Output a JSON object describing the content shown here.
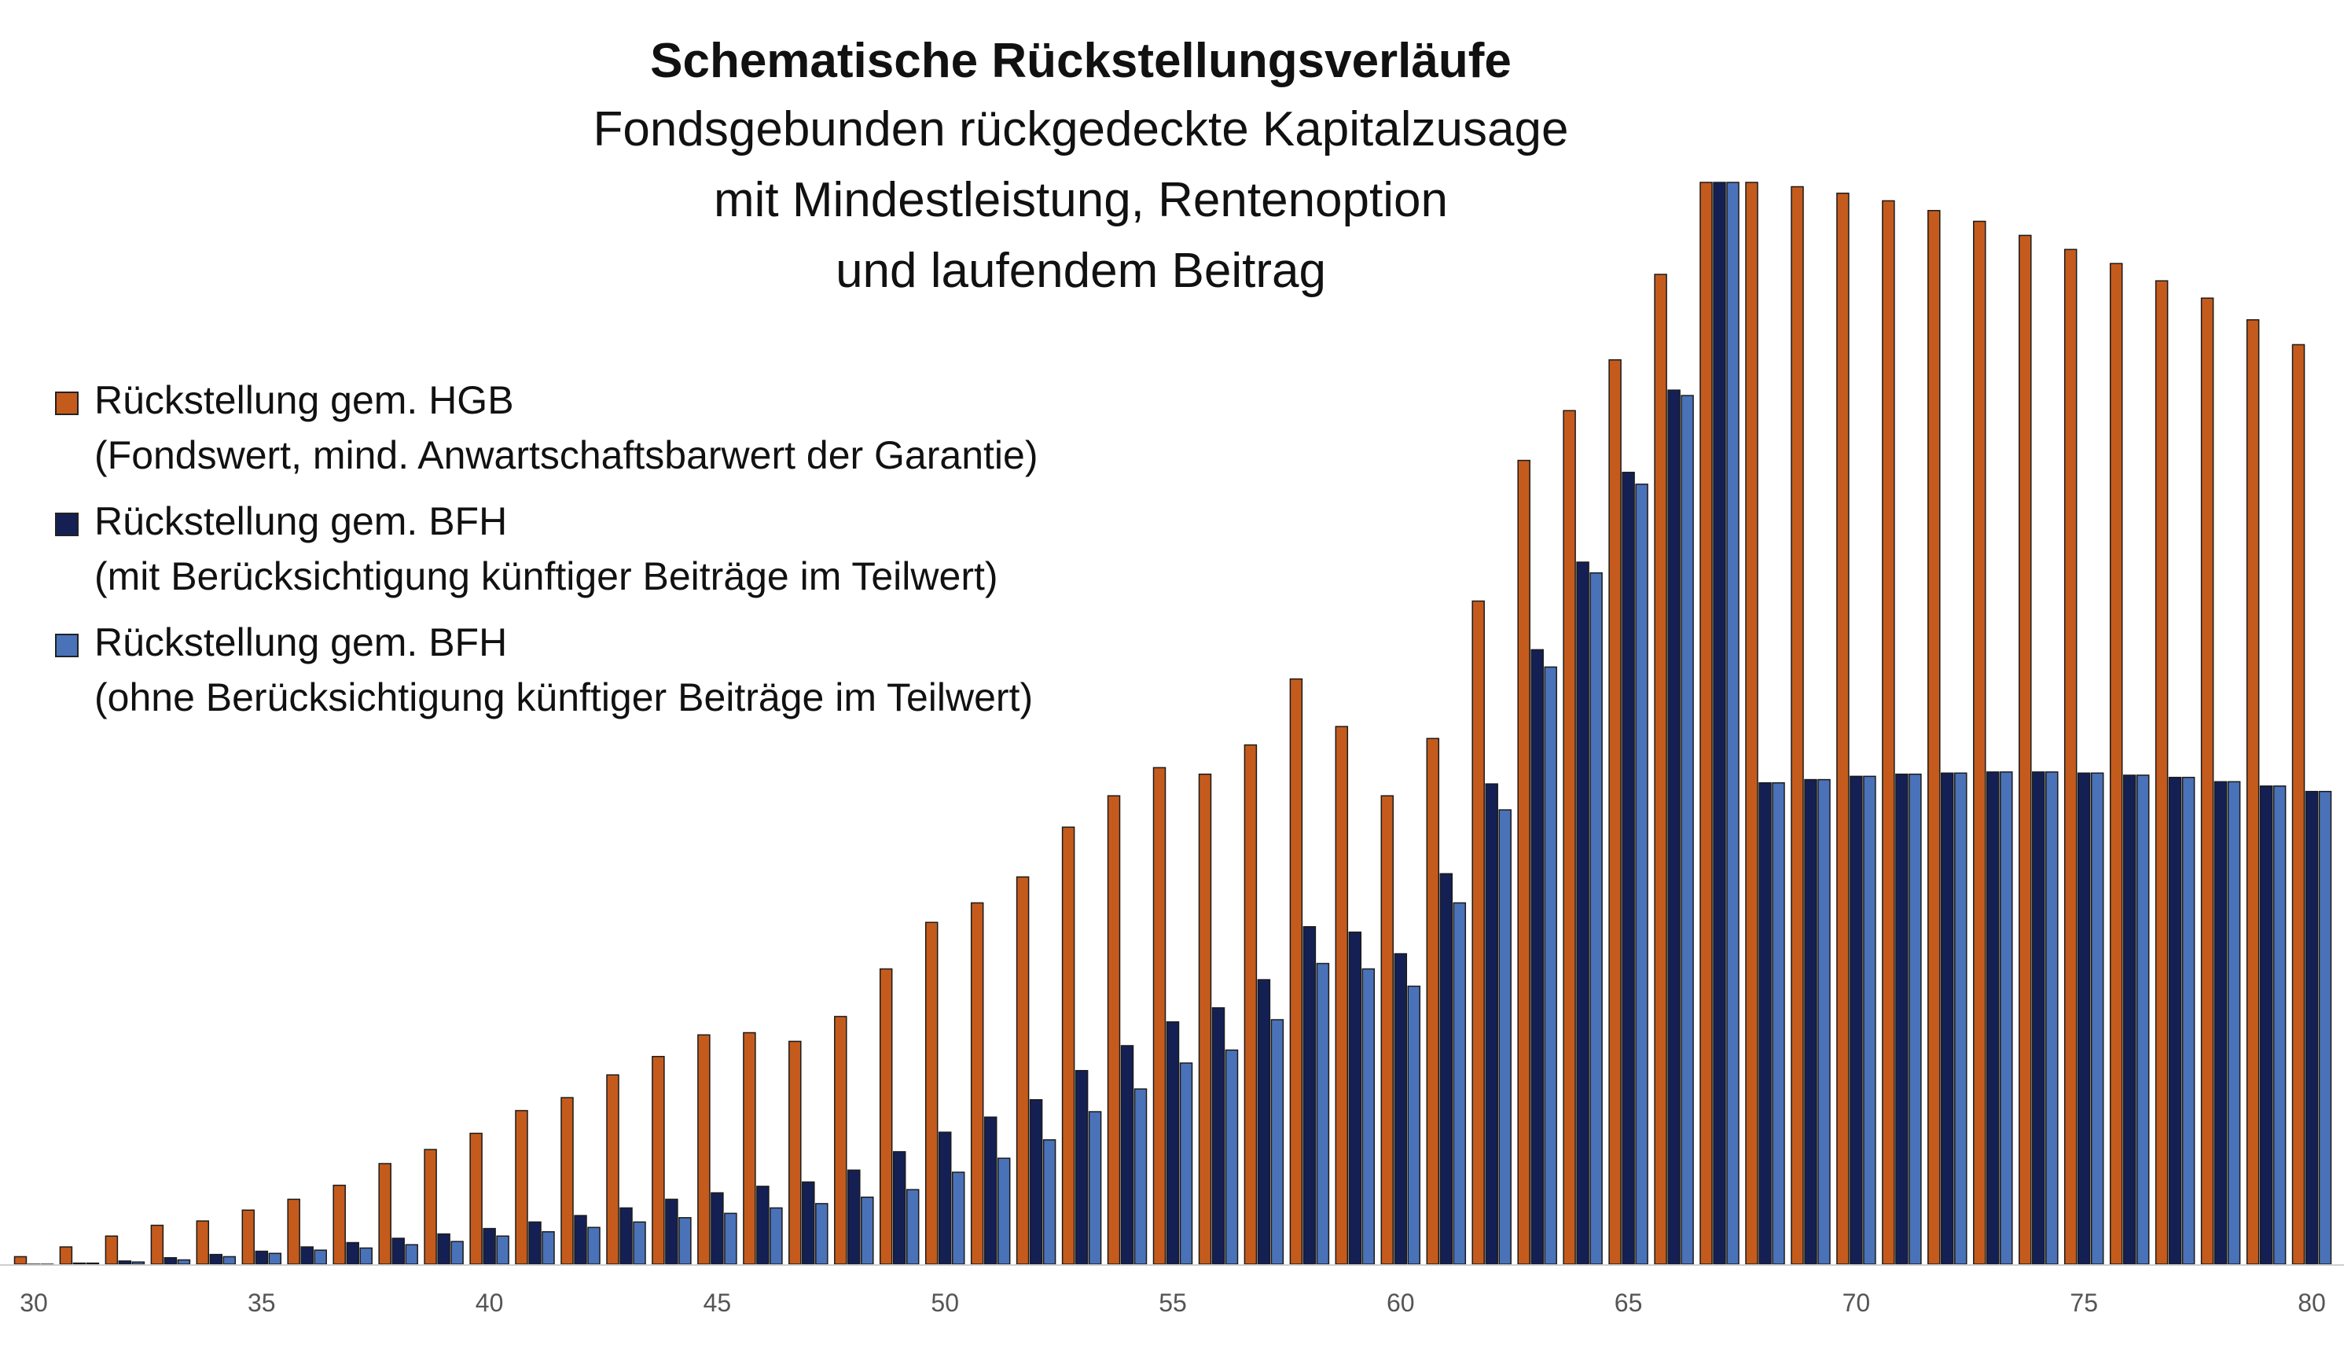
{
  "chart_data": {
    "type": "bar",
    "title": "Schematische Rückstellungsverläufe",
    "subtitle": "Fondsgebunden rückgedeckte Kapitalzusage\nmit Mindestleistung, Rentenoption\nund laufendem Beitrag",
    "xlabel": "",
    "ylabel": "",
    "x_start": 30,
    "x_end": 80,
    "x_ticks": [
      30,
      35,
      40,
      45,
      50,
      55,
      60,
      65,
      70,
      75,
      80
    ],
    "ylim": [
      0,
      100
    ],
    "grid": false,
    "legend_position": "left",
    "series": [
      {
        "name": "Rückstellung gem. HGB",
        "name_note": "(Fondswert, mind. Anwartschaftsbarwert der Garantie)",
        "color": "#c45b1d",
        "values": [
          0.7,
          1.6,
          2.6,
          3.6,
          4.0,
          5.0,
          6.0,
          7.3,
          9.3,
          10.6,
          12.1,
          14.2,
          15.4,
          17.5,
          19.2,
          21.2,
          21.4,
          20.6,
          22.9,
          27.3,
          31.6,
          33.4,
          35.8,
          40.4,
          43.3,
          45.9,
          45.3,
          48.0,
          54.1,
          49.7,
          43.3,
          48.6,
          61.3,
          74.3,
          78.9,
          83.6,
          91.5,
          100,
          100,
          99.6,
          99.0,
          98.3,
          97.4,
          96.4,
          95.1,
          93.8,
          92.5,
          90.9,
          89.3,
          87.3,
          85.0
        ]
      },
      {
        "name": "Rückstellung gem. BFH",
        "name_note": "(mit Berücksichtigung künftiger Beiträge im Teilwert)",
        "color": "#142054",
        "values": [
          0.0,
          0.1,
          0.3,
          0.6,
          0.9,
          1.2,
          1.6,
          2.0,
          2.4,
          2.8,
          3.3,
          3.9,
          4.5,
          5.2,
          6.0,
          6.6,
          7.2,
          7.6,
          8.7,
          10.4,
          12.2,
          13.6,
          15.2,
          17.9,
          20.2,
          22.4,
          23.7,
          26.3,
          31.2,
          30.7,
          28.7,
          36.1,
          44.4,
          56.8,
          64.9,
          73.2,
          80.8,
          100,
          44.5,
          44.8,
          45.1,
          45.3,
          45.4,
          45.5,
          45.5,
          45.4,
          45.2,
          45.0,
          44.6,
          44.2,
          43.7
        ]
      },
      {
        "name": "Rückstellung gem. BFH",
        "name_note": "(ohne Berücksichtigung künftiger Beiträge im Teilwert)",
        "color": "#4a72b8",
        "values": [
          0.0,
          0.1,
          0.2,
          0.4,
          0.7,
          1.0,
          1.3,
          1.5,
          1.8,
          2.1,
          2.6,
          3.0,
          3.4,
          3.9,
          4.3,
          4.7,
          5.2,
          5.6,
          6.2,
          6.9,
          8.5,
          9.8,
          11.5,
          14.1,
          16.2,
          18.6,
          19.8,
          22.6,
          27.8,
          27.3,
          25.7,
          33.4,
          42.0,
          55.2,
          63.9,
          72.1,
          80.3,
          100,
          44.5,
          44.8,
          45.1,
          45.3,
          45.4,
          45.5,
          45.5,
          45.4,
          45.2,
          45.0,
          44.6,
          44.2,
          43.7
        ]
      }
    ]
  }
}
